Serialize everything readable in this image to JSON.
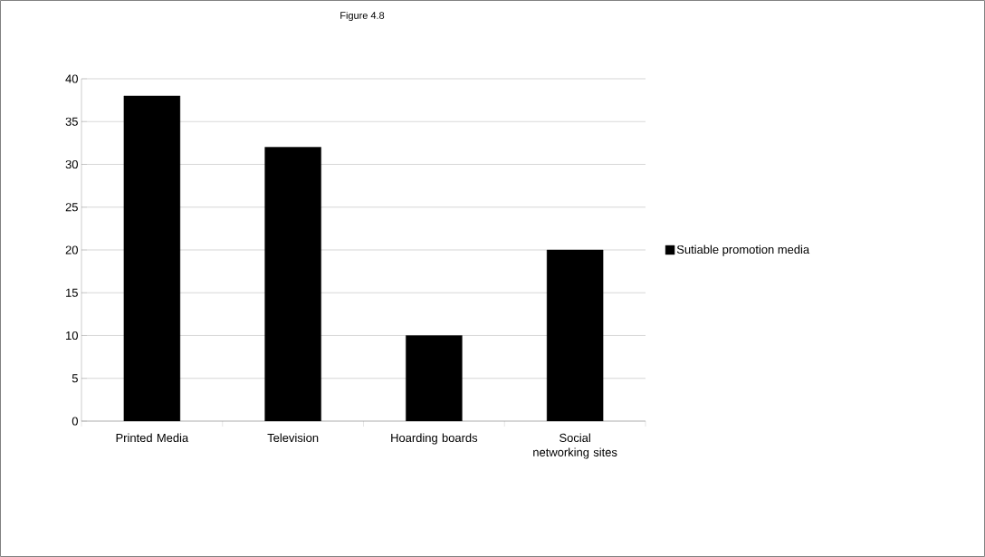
{
  "chart_data": {
    "type": "bar",
    "title": "Figure 4.8",
    "categories": [
      "Printed Media",
      "Television",
      "Hoarding boards",
      "Social networking sites"
    ],
    "series": [
      {
        "name": "Sutiable promotion media",
        "color": "#000000",
        "values": [
          38,
          32,
          10,
          20
        ]
      }
    ],
    "ylim": [
      0,
      40
    ],
    "yticks": [
      0,
      5,
      10,
      15,
      20,
      25,
      30,
      35,
      40
    ],
    "grid": "y",
    "legend": "right"
  }
}
